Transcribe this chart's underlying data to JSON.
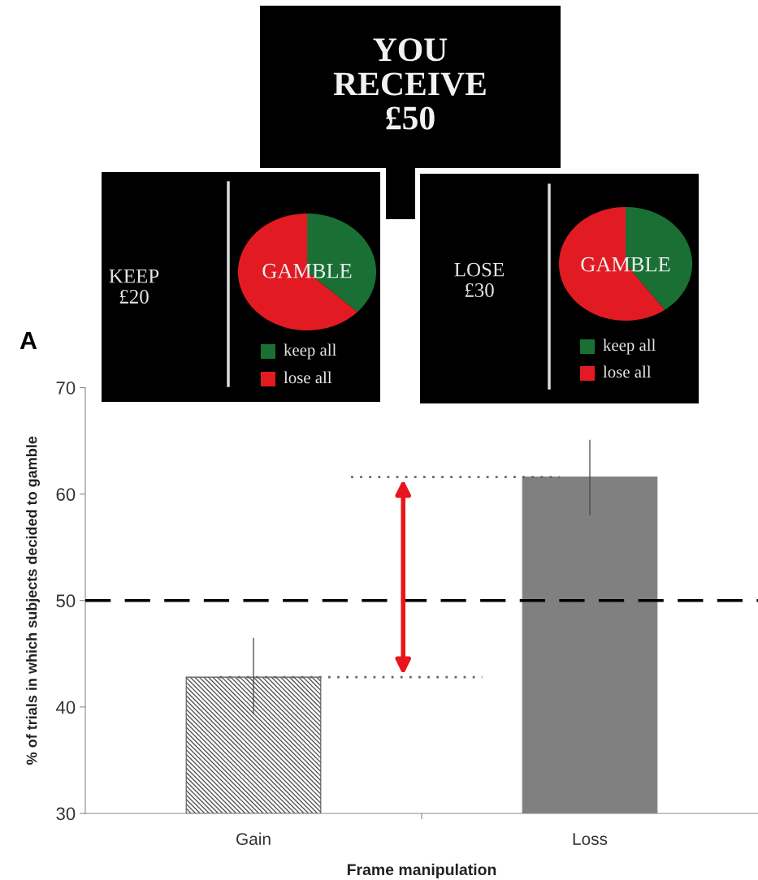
{
  "chart_data": {
    "type": "bar",
    "xlabel": "Frame manipulation",
    "ylabel": "% of trials in which subjects decided to gamble",
    "categories": [
      "Gain",
      "Loss"
    ],
    "values": [
      42.8,
      61.6
    ],
    "colors": [
      "#555555",
      "#808080"
    ],
    "errors": [
      [
        39.3,
        46.5
      ],
      [
        58.0,
        65.1
      ]
    ],
    "ylim": [
      30,
      70
    ],
    "yticks": [
      30,
      40,
      50,
      60,
      70
    ],
    "grid": false,
    "ref_lines": [
      {
        "axis": "y",
        "value": 50,
        "color": "#000000",
        "line_style": "dashed"
      },
      {
        "axis": "y",
        "value": 61.6,
        "color": "#666666",
        "line_style": "dotted"
      },
      {
        "axis": "y",
        "value": 42.8,
        "color": "#666666",
        "line_style": "dotted"
      }
    ],
    "annotations": [
      "A",
      "YOU\nRECEIVE\n£50",
      "KEEP\n£20",
      "GAMBLE",
      "keep all",
      "lose all",
      "LOSE\n£30",
      "GAMBLE",
      "keep all",
      "lose all"
    ]
  }
}
